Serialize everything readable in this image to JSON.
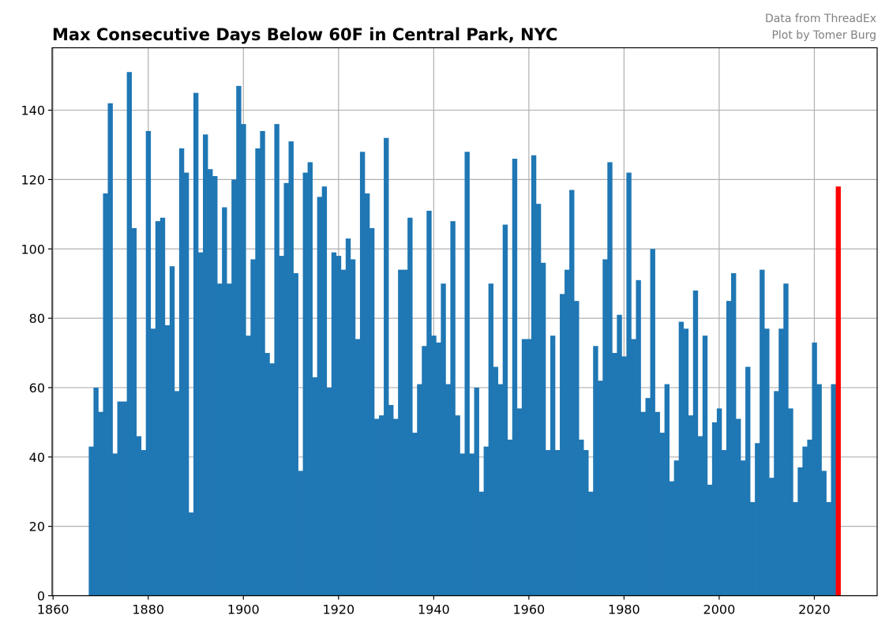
{
  "chart_data": {
    "type": "bar",
    "title": "Max Consecutive Days Below 60F in Central Park, NYC",
    "credit_lines": [
      "Data from ThreadEx",
      "Plot by Tomer Burg"
    ],
    "xlabel": "",
    "ylabel": "",
    "xlim": [
      1859.8,
      2033.2
    ],
    "ylim": [
      0,
      158
    ],
    "xticks": [
      1860,
      1880,
      1900,
      1920,
      1940,
      1960,
      1980,
      2000,
      2020
    ],
    "yticks": [
      0,
      20,
      40,
      60,
      80,
      100,
      120,
      140
    ],
    "grid": true,
    "colors": {
      "bars": "#1f77b4",
      "highlight": "#ff0000"
    },
    "highlight_year": 2025,
    "start_year": 1868,
    "years_label": "1868–2025",
    "values": [
      43,
      60,
      53,
      116,
      142,
      41,
      56,
      56,
      151,
      106,
      46,
      42,
      134,
      77,
      108,
      109,
      78,
      95,
      59,
      129,
      122,
      24,
      145,
      99,
      133,
      123,
      121,
      90,
      112,
      90,
      120,
      147,
      136,
      75,
      97,
      129,
      134,
      70,
      67,
      136,
      98,
      119,
      131,
      93,
      36,
      122,
      125,
      63,
      115,
      118,
      60,
      99,
      98,
      94,
      103,
      97,
      74,
      128,
      116,
      106,
      51,
      52,
      132,
      55,
      51,
      94,
      94,
      109,
      47,
      61,
      72,
      111,
      75,
      73,
      90,
      61,
      108,
      52,
      41,
      128,
      41,
      60,
      30,
      43,
      90,
      66,
      61,
      107,
      45,
      126,
      54,
      74,
      74,
      127,
      113,
      96,
      42,
      75,
      42,
      87,
      94,
      117,
      85,
      45,
      42,
      30,
      72,
      62,
      97,
      125,
      70,
      81,
      69,
      122,
      74,
      91,
      53,
      57,
      100,
      53,
      47,
      61,
      33,
      39,
      79,
      77,
      52,
      88,
      46,
      75,
      32,
      50,
      54,
      42,
      85,
      93,
      51,
      39,
      66,
      27,
      44,
      94,
      77,
      34,
      59,
      77,
      90,
      54,
      27,
      37,
      43,
      45,
      73,
      61,
      36,
      27,
      61,
      118
    ]
  }
}
